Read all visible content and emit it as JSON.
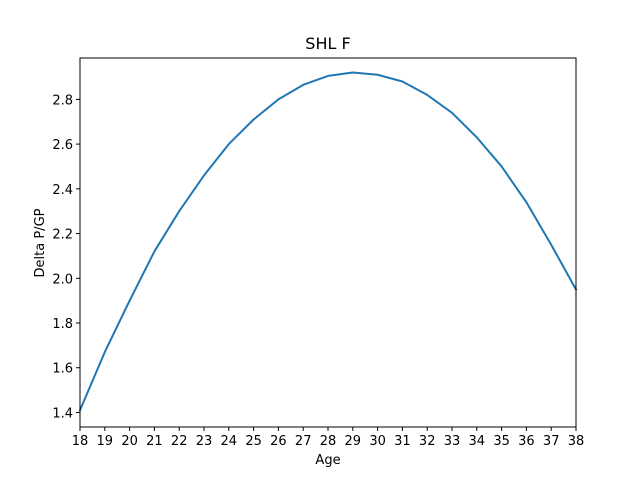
{
  "chart_data": {
    "type": "line",
    "title": "SHL F",
    "xlabel": "Age",
    "ylabel": "Delta P/GP",
    "xlim": [
      18,
      38
    ],
    "ylim": [
      1.335,
      2.985
    ],
    "x_ticks": [
      18,
      19,
      20,
      21,
      22,
      23,
      24,
      25,
      26,
      27,
      28,
      29,
      30,
      31,
      32,
      33,
      34,
      35,
      36,
      37,
      38
    ],
    "y_ticks": [
      1.4,
      1.6,
      1.8,
      2.0,
      2.2,
      2.4,
      2.6,
      2.8
    ],
    "y_tick_labels": [
      "1.4",
      "1.6",
      "1.8",
      "2.0",
      "2.2",
      "2.4",
      "2.6",
      "2.8"
    ],
    "grid": false,
    "series": [
      {
        "color": "#1f77b4",
        "x": [
          18,
          19,
          20,
          21,
          22,
          23,
          24,
          25,
          26,
          27,
          28,
          29,
          30,
          31,
          32,
          33,
          34,
          35,
          36,
          37,
          38
        ],
        "values": [
          1.41,
          1.67,
          1.9,
          2.12,
          2.3,
          2.46,
          2.6,
          2.71,
          2.8,
          2.865,
          2.905,
          2.92,
          2.91,
          2.88,
          2.82,
          2.74,
          2.63,
          2.5,
          2.34,
          2.15,
          1.95
        ]
      }
    ]
  }
}
